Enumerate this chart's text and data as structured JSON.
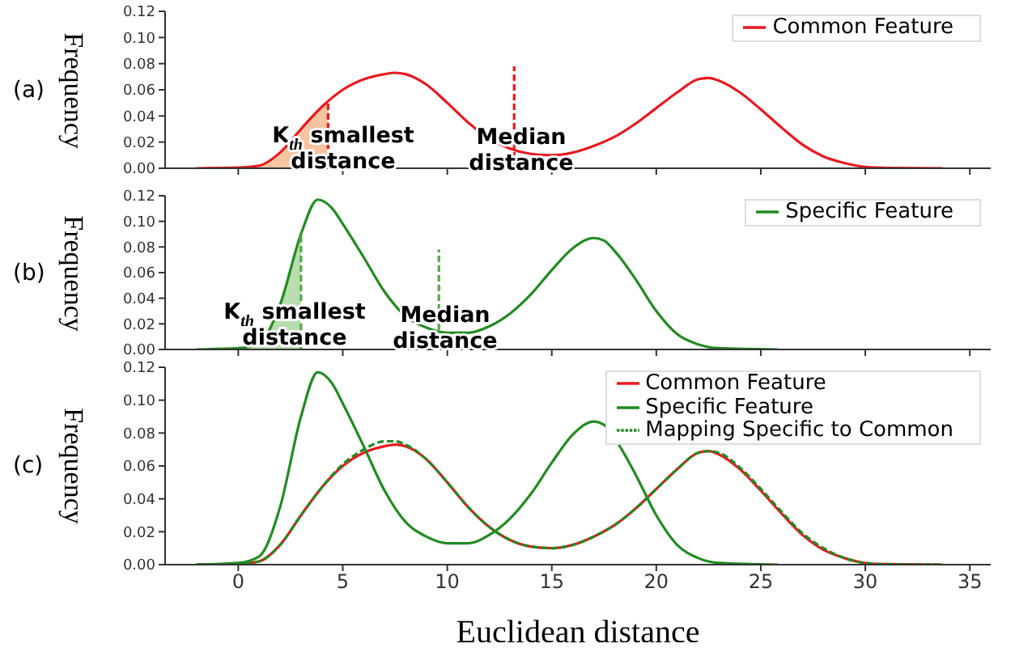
{
  "chart_data": [
    {
      "type": "line",
      "ylabel": "Frequency",
      "xlim": [
        -3.5,
        36
      ],
      "xticks": [
        0,
        5,
        10,
        15,
        20,
        25,
        30,
        35
      ],
      "ylim": [
        0,
        0.12
      ],
      "yticks": [
        {
          "value": 0,
          "label": "0.00"
        },
        {
          "value": 0.02,
          "label": "0.02"
        },
        {
          "value": 0.04,
          "label": "0.04"
        },
        {
          "value": 0.06,
          "label": "0.06"
        },
        {
          "value": 0.08,
          "label": "0.08"
        },
        {
          "value": 0.1,
          "label": "0.10"
        },
        {
          "value": 0.12,
          "label": "0.12"
        }
      ],
      "tick_labels": "y",
      "legend": "top right",
      "series": [
        {
          "type": "area",
          "color": "#f8c4a0",
          "x": [
            -2,
            0,
            1,
            2,
            3,
            4,
            4.3
          ],
          "values": [
            0,
            0.0005,
            0.002,
            0.012,
            0.03,
            0.047,
            0.051
          ]
        },
        {
          "name": "Common Feature",
          "color": "#e8191f",
          "x": [
            -2,
            0,
            1,
            2,
            3,
            4,
            5,
            6,
            7,
            7.5,
            8,
            9,
            10,
            11,
            12,
            13,
            14,
            15,
            16,
            17,
            18,
            19,
            20,
            21,
            22,
            22.5,
            23,
            24,
            25,
            26,
            27,
            28,
            29,
            30,
            31,
            33.7
          ],
          "values": [
            0,
            0.0005,
            0.002,
            0.012,
            0.03,
            0.047,
            0.06,
            0.068,
            0.072,
            0.073,
            0.072,
            0.064,
            0.05,
            0.035,
            0.023,
            0.015,
            0.011,
            0.01,
            0.012,
            0.017,
            0.024,
            0.034,
            0.046,
            0.058,
            0.068,
            0.069,
            0.067,
            0.058,
            0.045,
            0.031,
            0.018,
            0.009,
            0.004,
            0.001,
            0.0003,
            0
          ]
        },
        {
          "color": "#e8191f",
          "line_style": "dashed",
          "x": [
            4.3,
            4.3
          ],
          "values": [
            0,
            0.051
          ]
        },
        {
          "color": "#e8191f",
          "line_style": "dashed",
          "x": [
            13.2,
            13.2
          ],
          "values": [
            0,
            0.078
          ]
        }
      ],
      "annotations": [
        "(a)",
        "K$_{th}$ smallest distance",
        "Median distance"
      ]
    },
    {
      "type": "line",
      "ylabel": "Frequency",
      "xlim": [
        -3.5,
        36
      ],
      "xticks": [
        0,
        5,
        10,
        15,
        20,
        25,
        30,
        35
      ],
      "ylim": [
        0,
        0.12
      ],
      "yticks": [
        {
          "value": 0,
          "label": "0.00"
        },
        {
          "value": 0.02,
          "label": "0.02"
        },
        {
          "value": 0.04,
          "label": "0.04"
        },
        {
          "value": 0.06,
          "label": "0.06"
        },
        {
          "value": 0.08,
          "label": "0.08"
        },
        {
          "value": 0.1,
          "label": "0.10"
        },
        {
          "value": 0.12,
          "label": "0.12"
        }
      ],
      "tick_labels": "y",
      "legend": "top right",
      "series": [
        {
          "type": "area",
          "color": "#b9deae",
          "x": [
            -2,
            0,
            1,
            2,
            3
          ],
          "values": [
            0,
            0.001,
            0.005,
            0.035,
            0.09
          ]
        },
        {
          "name": "Specific Feature",
          "color": "#228b22",
          "x": [
            -2,
            0,
            1,
            2,
            3,
            3.8,
            4.5,
            5,
            6,
            7,
            8,
            9,
            10,
            11,
            12,
            13,
            14,
            15,
            16,
            17,
            17.5,
            18,
            19,
            20,
            21,
            22,
            23,
            25.8
          ],
          "values": [
            0,
            0.001,
            0.005,
            0.035,
            0.09,
            0.117,
            0.11,
            0.098,
            0.072,
            0.045,
            0.026,
            0.017,
            0.013,
            0.013,
            0.018,
            0.028,
            0.043,
            0.062,
            0.079,
            0.087,
            0.085,
            0.077,
            0.055,
            0.03,
            0.012,
            0.004,
            0.001,
            0
          ]
        },
        {
          "color": "#55a84a",
          "line_style": "dashed",
          "x": [
            3,
            3
          ],
          "values": [
            0,
            0.092
          ]
        },
        {
          "color": "#55a84a",
          "line_style": "dashed",
          "x": [
            9.6,
            9.6
          ],
          "values": [
            0,
            0.078
          ]
        }
      ],
      "annotations": [
        "(b)",
        "K$_{th}$ smallest distance",
        "Median distance"
      ]
    },
    {
      "type": "line",
      "ylabel": "Frequency",
      "xlabel": "Euclidean distance",
      "xlim": [
        -3.5,
        36
      ],
      "xticks": [
        0,
        5,
        10,
        15,
        20,
        25,
        30,
        35
      ],
      "ylim": [
        0,
        0.12
      ],
      "yticks": [
        {
          "value": 0,
          "label": "0.00"
        },
        {
          "value": 0.02,
          "label": "0.02"
        },
        {
          "value": 0.04,
          "label": "0.04"
        },
        {
          "value": 0.06,
          "label": "0.06"
        },
        {
          "value": 0.08,
          "label": "0.08"
        },
        {
          "value": 0.1,
          "label": "0.10"
        },
        {
          "value": 0.12,
          "label": "0.12"
        }
      ],
      "legend": "top right",
      "series": [
        {
          "name": "Common Feature",
          "color": "#e8191f",
          "x": [
            -2,
            0,
            1,
            2,
            3,
            4,
            5,
            6,
            7,
            7.5,
            8,
            9,
            10,
            11,
            12,
            13,
            14,
            15,
            16,
            17,
            18,
            19,
            20,
            21,
            22,
            22.5,
            23,
            24,
            25,
            26,
            27,
            28,
            29,
            30,
            31,
            33.7
          ],
          "values": [
            0,
            0.0005,
            0.002,
            0.012,
            0.03,
            0.047,
            0.06,
            0.068,
            0.072,
            0.073,
            0.072,
            0.064,
            0.05,
            0.035,
            0.023,
            0.015,
            0.011,
            0.01,
            0.012,
            0.017,
            0.024,
            0.034,
            0.046,
            0.058,
            0.068,
            0.069,
            0.067,
            0.058,
            0.045,
            0.031,
            0.018,
            0.009,
            0.004,
            0.001,
            0.0003,
            0
          ]
        },
        {
          "name": "Specific Feature",
          "color": "#228b22",
          "x": [
            -2,
            0,
            1,
            2,
            3,
            3.8,
            4.5,
            5,
            6,
            7,
            8,
            9,
            10,
            11,
            12,
            13,
            14,
            15,
            16,
            17,
            17.5,
            18,
            19,
            20,
            21,
            22,
            23,
            25.8
          ],
          "values": [
            0,
            0.001,
            0.005,
            0.035,
            0.09,
            0.117,
            0.11,
            0.098,
            0.072,
            0.045,
            0.026,
            0.017,
            0.013,
            0.013,
            0.018,
            0.028,
            0.043,
            0.062,
            0.079,
            0.087,
            0.085,
            0.077,
            0.055,
            0.03,
            0.012,
            0.004,
            0.001,
            0
          ]
        },
        {
          "name": "Mapping Specific to Common",
          "color": "#228b22",
          "line_style": "dashed",
          "x": [
            -2,
            0,
            1,
            2,
            3,
            4,
            5,
            6,
            7,
            7.5,
            8,
            9,
            10,
            11,
            12,
            13,
            14,
            15,
            16,
            17,
            18,
            19,
            20,
            21,
            22,
            22.5,
            23,
            24,
            25,
            26,
            27,
            28,
            29,
            30,
            31,
            33.7
          ],
          "values": [
            0,
            0.0005,
            0.002,
            0.012,
            0.03,
            0.047,
            0.061,
            0.07,
            0.075,
            0.075,
            0.073,
            0.064,
            0.05,
            0.035,
            0.023,
            0.015,
            0.011,
            0.01,
            0.012,
            0.017,
            0.024,
            0.034,
            0.046,
            0.058,
            0.068,
            0.069,
            0.068,
            0.059,
            0.046,
            0.032,
            0.019,
            0.01,
            0.004,
            0.001,
            0.0003,
            0
          ]
        }
      ],
      "annotations": [
        "(c)"
      ]
    }
  ]
}
